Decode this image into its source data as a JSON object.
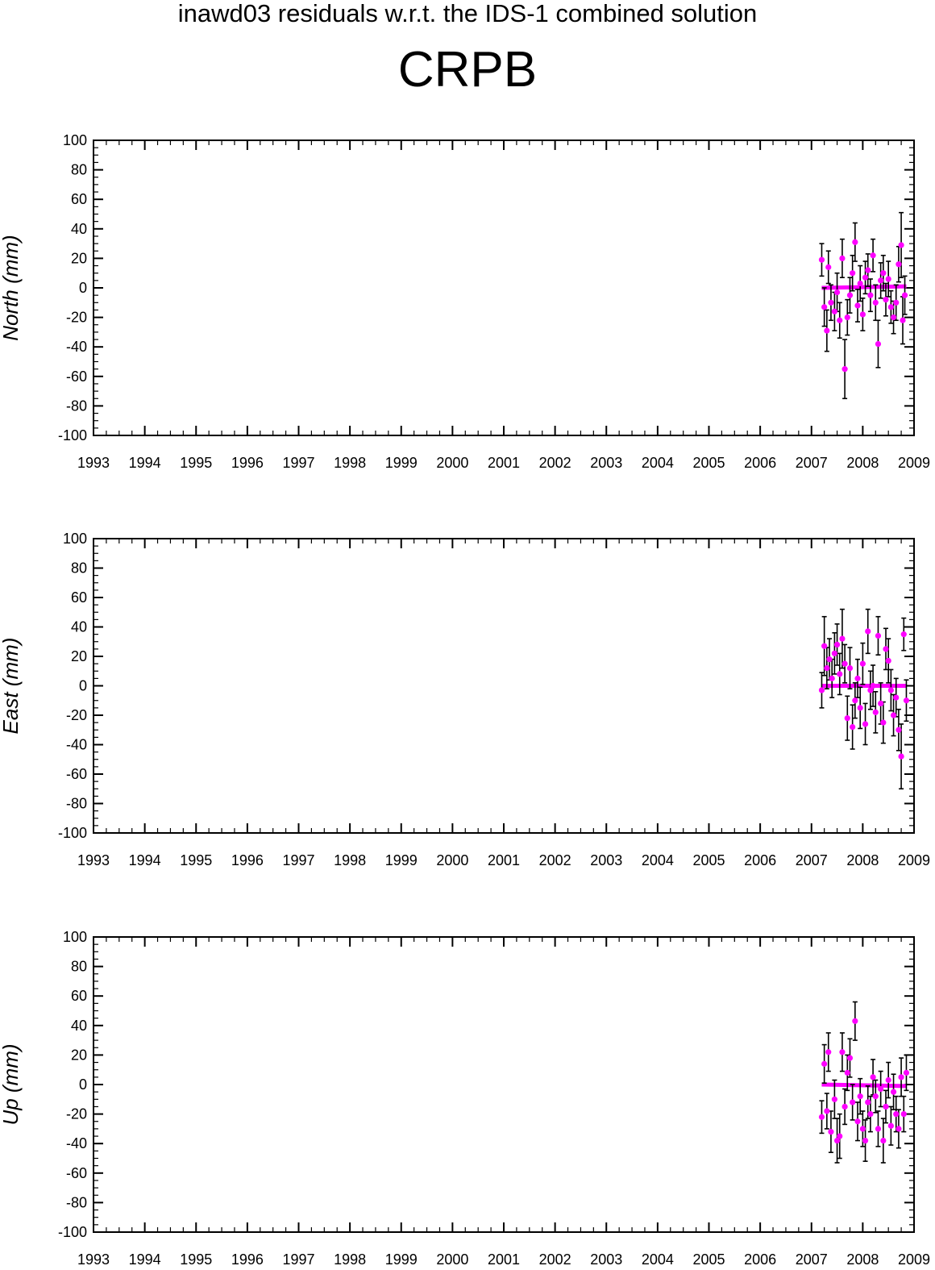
{
  "header": {
    "title": "inawd03 residuals w.r.t. the IDS-1 combined solution",
    "station": "CRPB"
  },
  "colors": {
    "point": "#ff00ff",
    "errorbar": "#000000",
    "axis": "#000000"
  },
  "chart_data": [
    {
      "type": "scatter",
      "ylabel": "North (mm)",
      "xlim": [
        1993,
        2009
      ],
      "ylim": [
        -100,
        100
      ],
      "xticks": [
        1993,
        1994,
        1995,
        1996,
        1997,
        1998,
        1999,
        2000,
        2001,
        2002,
        2003,
        2004,
        2005,
        2006,
        2007,
        2008,
        2009
      ],
      "yticks": [
        -100,
        -80,
        -60,
        -40,
        -20,
        0,
        20,
        40,
        60,
        80,
        100
      ],
      "series": [
        {
          "points": [
            [
              2007.2,
              19,
              11
            ],
            [
              2007.25,
              -13,
              13
            ],
            [
              2007.3,
              -29,
              14
            ],
            [
              2007.33,
              14,
              11
            ],
            [
              2007.38,
              -10,
              12
            ],
            [
              2007.45,
              -16,
              13
            ],
            [
              2007.5,
              -3,
              13
            ],
            [
              2007.55,
              -22,
              12
            ],
            [
              2007.6,
              20,
              13
            ],
            [
              2007.65,
              -55,
              20
            ],
            [
              2007.7,
              -20,
              12
            ],
            [
              2007.75,
              -5,
              12
            ],
            [
              2007.8,
              10,
              12
            ],
            [
              2007.85,
              31,
              13
            ],
            [
              2007.9,
              -12,
              11
            ],
            [
              2007.95,
              3,
              12
            ],
            [
              2008.0,
              -18,
              11
            ],
            [
              2008.05,
              7,
              11
            ],
            [
              2008.1,
              12,
              11
            ],
            [
              2008.15,
              -5,
              11
            ],
            [
              2008.2,
              22,
              11
            ],
            [
              2008.25,
              -10,
              12
            ],
            [
              2008.3,
              -38,
              16
            ],
            [
              2008.35,
              5,
              12
            ],
            [
              2008.4,
              10,
              12
            ],
            [
              2008.45,
              -8,
              11
            ],
            [
              2008.5,
              6,
              12
            ],
            [
              2008.55,
              -13,
              11
            ],
            [
              2008.6,
              -20,
              11
            ],
            [
              2008.65,
              -10,
              12
            ],
            [
              2008.7,
              16,
              12
            ],
            [
              2008.75,
              29,
              22
            ],
            [
              2008.78,
              -22,
              16
            ],
            [
              2008.82,
              -5,
              13
            ]
          ],
          "fit": [
            [
              2007.2,
              0
            ],
            [
              2008.85,
              1
            ]
          ]
        }
      ]
    },
    {
      "type": "scatter",
      "ylabel": "East (mm)",
      "xlim": [
        1993,
        2009
      ],
      "ylim": [
        -100,
        100
      ],
      "xticks": [
        1993,
        1994,
        1995,
        1996,
        1997,
        1998,
        1999,
        2000,
        2001,
        2002,
        2003,
        2004,
        2005,
        2006,
        2007,
        2008,
        2009
      ],
      "yticks": [
        -100,
        -80,
        -60,
        -40,
        -20,
        0,
        20,
        40,
        60,
        80,
        100
      ],
      "series": [
        {
          "points": [
            [
              2007.2,
              -3,
              12
            ],
            [
              2007.25,
              27,
              20
            ],
            [
              2007.3,
              12,
              14
            ],
            [
              2007.35,
              18,
              14
            ],
            [
              2007.4,
              5,
              13
            ],
            [
              2007.45,
              22,
              14
            ],
            [
              2007.5,
              28,
              14
            ],
            [
              2007.55,
              8,
              14
            ],
            [
              2007.6,
              32,
              20
            ],
            [
              2007.65,
              15,
              13
            ],
            [
              2007.7,
              -22,
              15
            ],
            [
              2007.75,
              12,
              14
            ],
            [
              2007.8,
              -28,
              15
            ],
            [
              2007.85,
              -10,
              12
            ],
            [
              2007.9,
              5,
              13
            ],
            [
              2007.95,
              -15,
              14
            ],
            [
              2008.0,
              15,
              14
            ],
            [
              2008.05,
              -26,
              14
            ],
            [
              2008.1,
              37,
              15
            ],
            [
              2008.15,
              -3,
              13
            ],
            [
              2008.2,
              0,
              14
            ],
            [
              2008.25,
              -18,
              14
            ],
            [
              2008.3,
              34,
              13
            ],
            [
              2008.35,
              -12,
              14
            ],
            [
              2008.4,
              -25,
              14
            ],
            [
              2008.45,
              25,
              14
            ],
            [
              2008.5,
              17,
              15
            ],
            [
              2008.55,
              -3,
              14
            ],
            [
              2008.6,
              -20,
              14
            ],
            [
              2008.65,
              -8,
              13
            ],
            [
              2008.7,
              -30,
              14
            ],
            [
              2008.75,
              -48,
              22
            ],
            [
              2008.8,
              35,
              11
            ],
            [
              2008.85,
              -10,
              14
            ]
          ],
          "fit": [
            [
              2007.2,
              0
            ],
            [
              2008.85,
              0
            ]
          ]
        }
      ]
    },
    {
      "type": "scatter",
      "ylabel": "Up (mm)",
      "xlim": [
        1993,
        2009
      ],
      "ylim": [
        -100,
        100
      ],
      "xticks": [
        1993,
        1994,
        1995,
        1996,
        1997,
        1998,
        1999,
        2000,
        2001,
        2002,
        2003,
        2004,
        2005,
        2006,
        2007,
        2008,
        2009
      ],
      "yticks": [
        -100,
        -80,
        -60,
        -40,
        -20,
        0,
        20,
        40,
        60,
        80,
        100
      ],
      "series": [
        {
          "points": [
            [
              2007.2,
              -22,
              11
            ],
            [
              2007.25,
              14,
              13
            ],
            [
              2007.3,
              -18,
              12
            ],
            [
              2007.33,
              22,
              13
            ],
            [
              2007.38,
              -32,
              14
            ],
            [
              2007.45,
              -10,
              13
            ],
            [
              2007.5,
              -38,
              15
            ],
            [
              2007.55,
              -35,
              15
            ],
            [
              2007.6,
              22,
              13
            ],
            [
              2007.65,
              -15,
              12
            ],
            [
              2007.7,
              8,
              12
            ],
            [
              2007.75,
              18,
              13
            ],
            [
              2007.8,
              -12,
              12
            ],
            [
              2007.85,
              43,
              13
            ],
            [
              2007.9,
              -25,
              13
            ],
            [
              2007.95,
              -8,
              12
            ],
            [
              2008.0,
              -30,
              12
            ],
            [
              2008.05,
              -38,
              14
            ],
            [
              2008.1,
              -12,
              11
            ],
            [
              2008.15,
              -20,
              12
            ],
            [
              2008.2,
              5,
              12
            ],
            [
              2008.25,
              -8,
              11
            ],
            [
              2008.3,
              -30,
              12
            ],
            [
              2008.35,
              -3,
              12
            ],
            [
              2008.4,
              -38,
              15
            ],
            [
              2008.45,
              -15,
              11
            ],
            [
              2008.5,
              3,
              12
            ],
            [
              2008.55,
              -28,
              13
            ],
            [
              2008.6,
              -5,
              12
            ],
            [
              2008.65,
              -20,
              12
            ],
            [
              2008.7,
              -30,
              13
            ],
            [
              2008.75,
              5,
              13
            ],
            [
              2008.8,
              -20,
              12
            ],
            [
              2008.85,
              8,
              12
            ]
          ],
          "fit": [
            [
              2007.2,
              0
            ],
            [
              2008.85,
              -1
            ]
          ]
        }
      ]
    }
  ]
}
